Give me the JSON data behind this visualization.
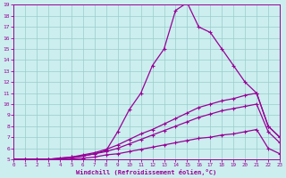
{
  "xlabel": "Windchill (Refroidissement éolien,°C)",
  "bg_color": "#cceeee",
  "line_color": "#990099",
  "grid_color": "#99cccc",
  "xmin": 0,
  "xmax": 23,
  "ymin": 5,
  "ymax": 19,
  "line1_x": [
    0,
    1,
    2,
    3,
    4,
    5,
    6,
    7,
    8,
    9,
    10,
    11,
    12,
    13,
    14,
    15,
    16,
    17,
    18,
    19,
    20,
    21,
    22,
    23
  ],
  "line1_y": [
    5.0,
    5.0,
    5.0,
    5.0,
    5.1,
    5.2,
    5.3,
    5.5,
    5.8,
    7.5,
    9.5,
    11.0,
    13.5,
    15.0,
    18.5,
    19.2,
    17.0,
    16.5,
    15.0,
    13.5,
    12.0,
    11.0,
    8.0,
    7.0
  ],
  "line2_x": [
    0,
    1,
    2,
    3,
    4,
    5,
    6,
    7,
    8,
    9,
    10,
    11,
    12,
    13,
    14,
    15,
    16,
    17,
    18,
    19,
    20,
    21,
    22,
    23
  ],
  "line2_y": [
    5.0,
    5.0,
    5.0,
    5.0,
    5.1,
    5.2,
    5.4,
    5.6,
    5.9,
    6.3,
    6.8,
    7.3,
    7.7,
    8.2,
    8.7,
    9.2,
    9.7,
    10.0,
    10.3,
    10.5,
    10.8,
    11.0,
    8.0,
    7.0
  ],
  "line3_x": [
    0,
    1,
    2,
    3,
    4,
    5,
    6,
    7,
    8,
    9,
    10,
    11,
    12,
    13,
    14,
    15,
    16,
    17,
    18,
    19,
    20,
    21,
    22,
    23
  ],
  "line3_y": [
    5.0,
    5.0,
    5.0,
    5.0,
    5.0,
    5.1,
    5.3,
    5.5,
    5.7,
    6.0,
    6.4,
    6.8,
    7.2,
    7.6,
    8.0,
    8.4,
    8.8,
    9.1,
    9.4,
    9.6,
    9.8,
    10.0,
    7.5,
    6.5
  ],
  "line4_x": [
    0,
    1,
    2,
    3,
    4,
    5,
    6,
    7,
    8,
    9,
    10,
    11,
    12,
    13,
    14,
    15,
    16,
    17,
    18,
    19,
    20,
    21,
    22,
    23
  ],
  "line4_y": [
    5.0,
    5.0,
    5.0,
    5.0,
    5.0,
    5.0,
    5.1,
    5.2,
    5.4,
    5.5,
    5.7,
    5.9,
    6.1,
    6.3,
    6.5,
    6.7,
    6.9,
    7.0,
    7.2,
    7.3,
    7.5,
    7.7,
    6.0,
    5.5
  ]
}
